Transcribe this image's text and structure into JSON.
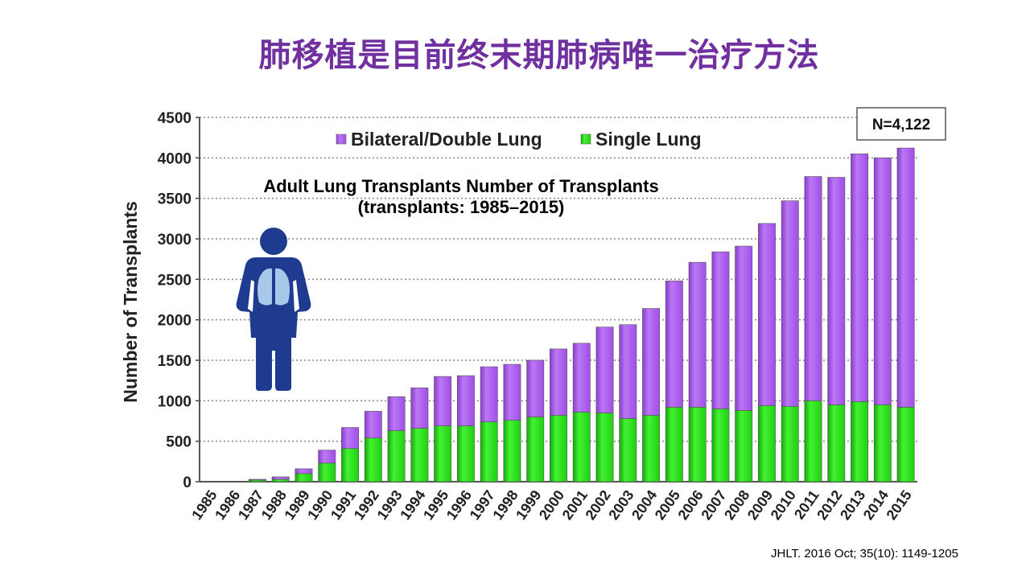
{
  "slide": {
    "title": "肺移植是目前终末期肺病唯一治疗方法",
    "citation": "JHLT. 2016 Oct; 35(10): 1149-1205"
  },
  "chart_data": {
    "type": "bar",
    "stacked": true,
    "title": "Adult Lung Transplants Number of Transplants",
    "subtitle": "(transplants: 1985–2015)",
    "ylabel": "Number of Transplants",
    "xlabel": "",
    "ylim": [
      0,
      4500
    ],
    "yticks": [
      0,
      500,
      1000,
      1500,
      2000,
      2500,
      3000,
      3500,
      4000,
      4500
    ],
    "grid": true,
    "legend_position": "top",
    "annotation": "N=4,122",
    "categories": [
      "1985",
      "1986",
      "1987",
      "1988",
      "1989",
      "1990",
      "1991",
      "1992",
      "1993",
      "1994",
      "1995",
      "1996",
      "1997",
      "1998",
      "1999",
      "2000",
      "2001",
      "2002",
      "2003",
      "2004",
      "2005",
      "2006",
      "2007",
      "2008",
      "2009",
      "2010",
      "2011",
      "2012",
      "2013",
      "2014",
      "2015"
    ],
    "series": [
      {
        "name": "Single Lung",
        "color": "#22dd11",
        "values": [
          0,
          2,
          20,
          30,
          100,
          230,
          410,
          540,
          630,
          660,
          690,
          690,
          740,
          760,
          800,
          820,
          860,
          850,
          780,
          820,
          920,
          920,
          900,
          880,
          940,
          930,
          1000,
          950,
          990,
          950,
          920
        ]
      },
      {
        "name": "Bilateral/Double Lung",
        "color": "#aa55ee",
        "values": [
          0,
          0,
          10,
          30,
          60,
          160,
          260,
          330,
          420,
          500,
          610,
          620,
          680,
          690,
          700,
          820,
          850,
          1060,
          1160,
          1320,
          1560,
          1790,
          1940,
          2030,
          2250,
          2540,
          2770,
          2810,
          3060,
          3050,
          3202
        ]
      }
    ]
  },
  "icon": {
    "name": "person-lungs-icon",
    "body_color": "#1f3b8f",
    "lung_color": "#a8c8ea"
  }
}
